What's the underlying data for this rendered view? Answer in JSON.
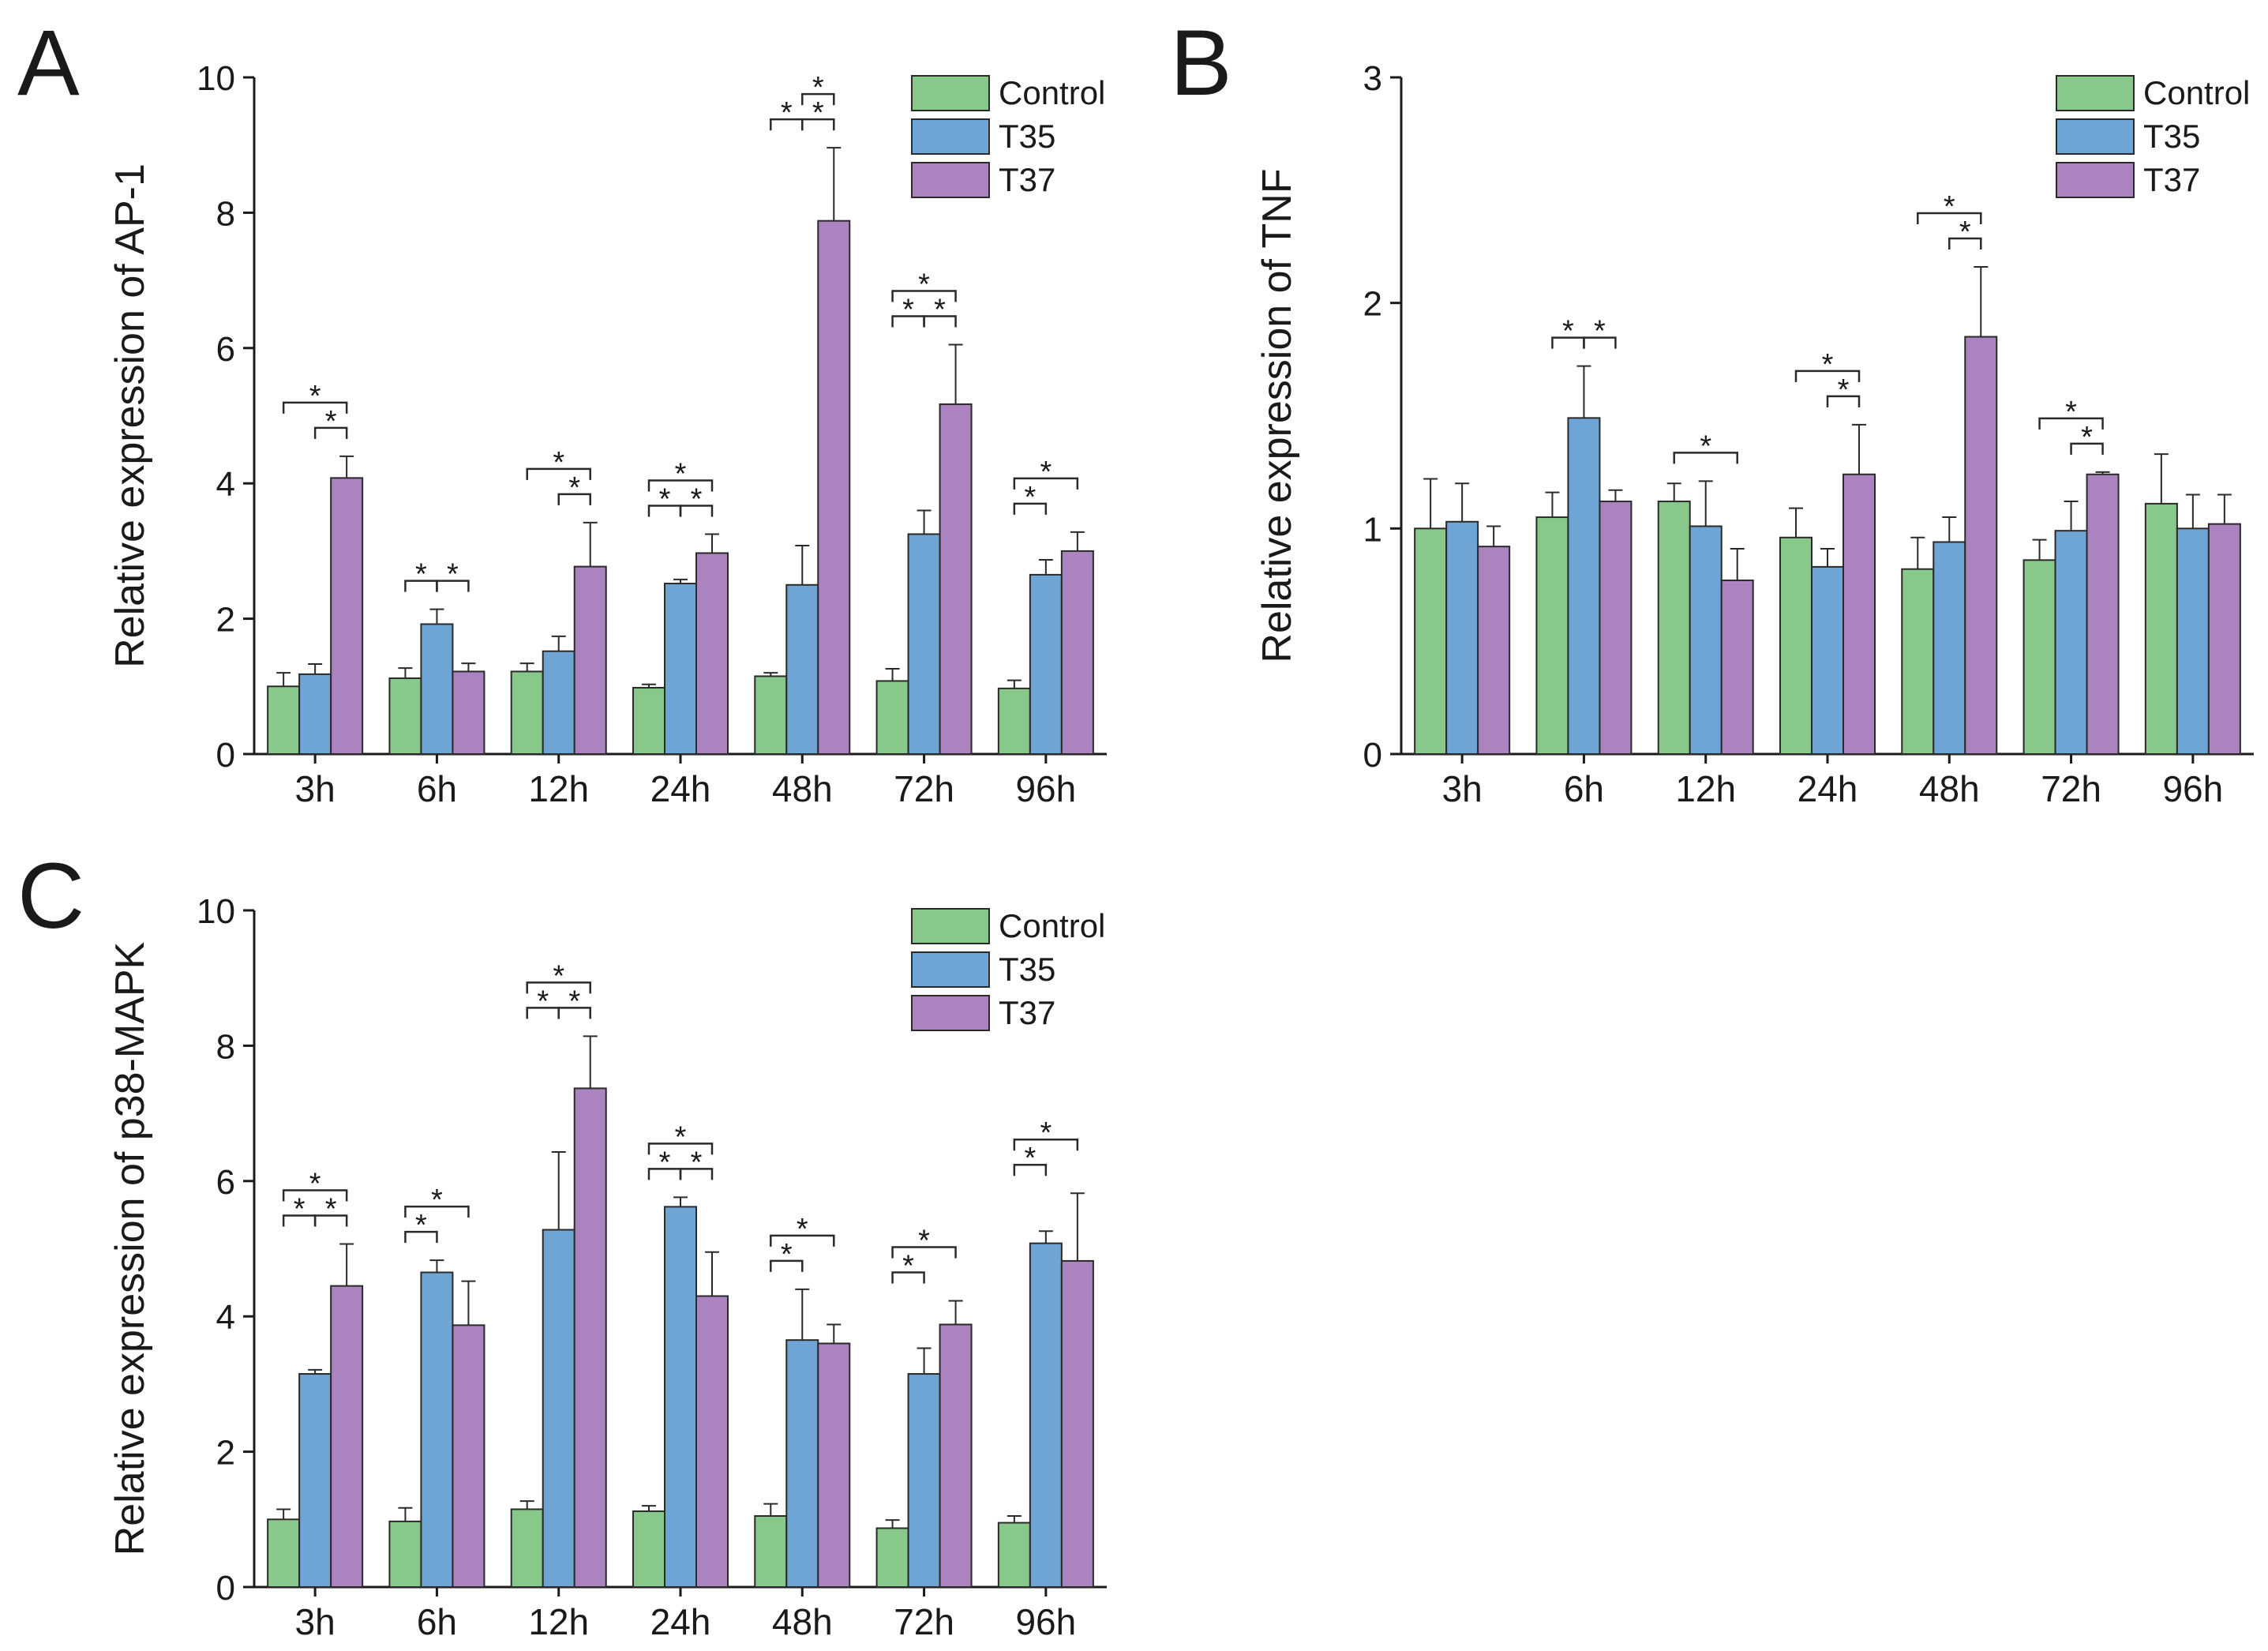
{
  "figure": {
    "colors": {
      "control": "#88c98b",
      "t35": "#6ea5d5",
      "t37": "#ab83bf",
      "edge": "#2a2a2a"
    }
  },
  "chart_data": [
    {
      "panel": "A",
      "type": "bar",
      "ylabel": "Relative expression of AP-1",
      "categories": [
        "3h",
        "6h",
        "12h",
        "24h",
        "48h",
        "72h",
        "96h"
      ],
      "ylim": [
        0,
        10
      ],
      "yticks": [
        0,
        2,
        4,
        6,
        8,
        10
      ],
      "ytick_labels": [
        "0",
        "2",
        "4",
        "6",
        "8",
        "10"
      ],
      "legend": [
        "Control",
        "T35",
        "T37"
      ],
      "legend_position": "top-right",
      "significance_marker": "*",
      "series": [
        {
          "name": "Control",
          "values": [
            1.0,
            1.12,
            1.22,
            0.98,
            1.15,
            1.08,
            0.97
          ],
          "errors": [
            0.2,
            0.15,
            0.12,
            0.05,
            0.05,
            0.18,
            0.12
          ]
        },
        {
          "name": "T35",
          "values": [
            1.18,
            1.92,
            1.52,
            2.52,
            2.5,
            3.25,
            2.65
          ],
          "errors": [
            0.15,
            0.22,
            0.22,
            0.06,
            0.58,
            0.35,
            0.22
          ]
        },
        {
          "name": "T37",
          "values": [
            4.08,
            1.22,
            2.77,
            2.97,
            7.88,
            5.17,
            3.0
          ],
          "errors": [
            0.32,
            0.12,
            0.65,
            0.28,
            1.08,
            0.88,
            0.28
          ]
        }
      ],
      "significance": [
        {
          "cat": 0,
          "pairs": [
            [
              0,
              2
            ],
            [
              1,
              2
            ]
          ]
        },
        {
          "cat": 1,
          "pairs": [
            [
              0,
              1
            ],
            [
              1,
              2
            ]
          ]
        },
        {
          "cat": 2,
          "pairs": [
            [
              0,
              2
            ],
            [
              1,
              2
            ]
          ]
        },
        {
          "cat": 3,
          "pairs": [
            [
              0,
              2
            ],
            [
              0,
              1
            ],
            [
              1,
              2
            ]
          ]
        },
        {
          "cat": 4,
          "pairs": [
            [
              1,
              2
            ],
            [
              0,
              1
            ],
            [
              1,
              2
            ]
          ]
        },
        {
          "cat": 5,
          "pairs": [
            [
              0,
              2
            ],
            [
              0,
              1
            ],
            [
              1,
              2
            ]
          ]
        },
        {
          "cat": 6,
          "pairs": [
            [
              0,
              2
            ],
            [
              0,
              1
            ]
          ]
        }
      ]
    },
    {
      "panel": "B",
      "type": "bar",
      "ylabel": "Relative expression of TNF",
      "categories": [
        "3h",
        "6h",
        "12h",
        "24h",
        "48h",
        "72h",
        "96h"
      ],
      "ylim": [
        0,
        3
      ],
      "yticks": [
        0,
        1,
        2,
        3
      ],
      "ytick_labels": [
        "0",
        "1",
        "2",
        "3"
      ],
      "legend": [
        "Control",
        "T35",
        "T37"
      ],
      "legend_position": "top-right",
      "significance_marker": "*",
      "series": [
        {
          "name": "Control",
          "values": [
            1.0,
            1.05,
            1.12,
            0.96,
            0.82,
            0.86,
            1.11
          ],
          "errors": [
            0.22,
            0.11,
            0.08,
            0.13,
            0.14,
            0.09,
            0.22
          ]
        },
        {
          "name": "T35",
          "values": [
            1.03,
            1.49,
            1.01,
            0.83,
            0.94,
            0.99,
            1.0
          ],
          "errors": [
            0.17,
            0.23,
            0.2,
            0.08,
            0.11,
            0.13,
            0.15
          ]
        },
        {
          "name": "T37",
          "values": [
            0.92,
            1.12,
            0.77,
            1.24,
            1.85,
            1.24,
            1.02
          ],
          "errors": [
            0.09,
            0.05,
            0.14,
            0.22,
            0.31,
            0.01,
            0.13
          ]
        }
      ],
      "significance": [
        {
          "cat": 1,
          "pairs": [
            [
              0,
              1
            ],
            [
              1,
              2
            ]
          ]
        },
        {
          "cat": 2,
          "pairs": [
            [
              0,
              2
            ]
          ]
        },
        {
          "cat": 3,
          "pairs": [
            [
              0,
              2
            ],
            [
              1,
              2
            ]
          ]
        },
        {
          "cat": 4,
          "pairs": [
            [
              0,
              2
            ],
            [
              1,
              2
            ]
          ]
        },
        {
          "cat": 5,
          "pairs": [
            [
              0,
              2
            ],
            [
              1,
              2
            ]
          ]
        }
      ]
    },
    {
      "panel": "C",
      "type": "bar",
      "ylabel": "Relative expression of p38-MAPK",
      "categories": [
        "3h",
        "6h",
        "12h",
        "24h",
        "48h",
        "72h",
        "96h"
      ],
      "ylim": [
        0,
        10
      ],
      "yticks": [
        0,
        2,
        4,
        6,
        8,
        10
      ],
      "ytick_labels": [
        "0",
        "2",
        "4",
        "6",
        "8",
        "10"
      ],
      "legend": [
        "Control",
        "T35",
        "T37"
      ],
      "legend_position": "top-right",
      "significance_marker": "*",
      "series": [
        {
          "name": "Control",
          "values": [
            1.0,
            0.97,
            1.15,
            1.12,
            1.05,
            0.87,
            0.95
          ],
          "errors": [
            0.15,
            0.2,
            0.12,
            0.08,
            0.18,
            0.12,
            0.1
          ]
        },
        {
          "name": "T35",
          "values": [
            3.15,
            4.65,
            5.28,
            5.62,
            3.65,
            3.15,
            5.08
          ],
          "errors": [
            0.06,
            0.18,
            1.15,
            0.14,
            0.75,
            0.38,
            0.18
          ]
        },
        {
          "name": "T37",
          "values": [
            4.45,
            3.87,
            7.37,
            4.3,
            3.6,
            3.88,
            4.82
          ],
          "errors": [
            0.62,
            0.65,
            0.77,
            0.65,
            0.28,
            0.35,
            1.0
          ]
        }
      ],
      "significance": [
        {
          "cat": 0,
          "pairs": [
            [
              0,
              2
            ],
            [
              0,
              1
            ],
            [
              1,
              2
            ]
          ]
        },
        {
          "cat": 1,
          "pairs": [
            [
              0,
              2
            ],
            [
              0,
              1
            ]
          ]
        },
        {
          "cat": 2,
          "pairs": [
            [
              0,
              2
            ],
            [
              0,
              1
            ],
            [
              1,
              2
            ]
          ]
        },
        {
          "cat": 3,
          "pairs": [
            [
              0,
              2
            ],
            [
              0,
              1
            ],
            [
              1,
              2
            ]
          ]
        },
        {
          "cat": 4,
          "pairs": [
            [
              0,
              2
            ],
            [
              0,
              1
            ]
          ]
        },
        {
          "cat": 5,
          "pairs": [
            [
              0,
              2
            ],
            [
              0,
              1
            ]
          ]
        },
        {
          "cat": 6,
          "pairs": [
            [
              0,
              2
            ],
            [
              0,
              1
            ]
          ]
        }
      ]
    }
  ]
}
